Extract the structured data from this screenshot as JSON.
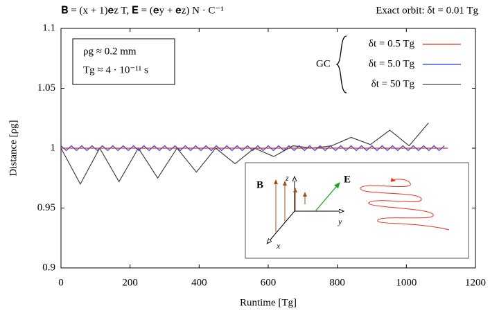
{
  "chart_data": {
    "type": "line",
    "title": "𝐁 = (x + 1)𝐞z T,  𝐄 = (𝐞y + 𝐞z) N · C⁻¹",
    "subtitle": "Exact orbit:  δt = 0.01 Tg",
    "x_label": "Runtime [Tg]",
    "y_label": "Distance [ρg]",
    "annotations": [
      "ρg ≈ 0.2 mm",
      "Tg ≈ 4 · 10⁻¹¹ s"
    ],
    "legend_title": "GC",
    "inset_labels": [
      "B",
      "E",
      "z",
      "y",
      "x"
    ],
    "legend": "upper right",
    "grid": false,
    "xlim": [
      0,
      1200
    ],
    "xticks": [
      0,
      200,
      400,
      600,
      800,
      1000,
      1200
    ],
    "ylim": [
      0.9,
      1.1
    ],
    "yticks": [
      0.9,
      0.95,
      1,
      1.05,
      1.1
    ],
    "series": [
      {
        "name": "δt = 0.5 Tg",
        "color": "#e8311f",
        "x": [
          0,
          1120
        ],
        "values": [
          1,
          1
        ]
      },
      {
        "name": "δt = 5.0 Tg",
        "color": "#1f3de0",
        "x": [
          0,
          15,
          30,
          45,
          60,
          75,
          90,
          105,
          120,
          135,
          150,
          165,
          180,
          195,
          210,
          225,
          240,
          255,
          270,
          285,
          300,
          315,
          330,
          345,
          360,
          375,
          390,
          405,
          420,
          435,
          450,
          465,
          480,
          495,
          510,
          525,
          540,
          555,
          570,
          585,
          600,
          615,
          630,
          645,
          660,
          675,
          690,
          705,
          720,
          735,
          750,
          765,
          780,
          795,
          810,
          825,
          840,
          855,
          870,
          885,
          900,
          915,
          930,
          945,
          960,
          975,
          990,
          1005,
          1020,
          1035,
          1050,
          1065,
          1080,
          1095,
          1110
        ],
        "values": [
          1.002,
          0.998,
          1.002,
          0.998,
          1.002,
          0.998,
          1.002,
          0.998,
          1.002,
          0.998,
          1.002,
          0.998,
          1.002,
          0.998,
          1.002,
          0.998,
          1.002,
          0.998,
          1.002,
          0.998,
          1.002,
          0.998,
          1.002,
          0.998,
          1.002,
          0.998,
          1.002,
          0.998,
          1.002,
          0.998,
          1.002,
          0.998,
          1.002,
          0.998,
          1.002,
          0.998,
          1.002,
          0.998,
          1.002,
          0.998,
          1.002,
          0.998,
          1.002,
          0.998,
          1.002,
          0.998,
          1.002,
          0.998,
          1.002,
          0.998,
          1.002,
          0.998,
          1.002,
          0.998,
          1.002,
          0.998,
          1.002,
          0.998,
          1.002,
          0.998,
          1.002,
          0.998,
          1.002,
          0.998,
          1.002,
          0.998,
          1.002,
          0.998,
          1.002,
          0.998,
          1.002,
          0.998,
          1.002,
          0.998,
          1.002
        ]
      },
      {
        "name": "δt = 50 Tg",
        "color": "#404040",
        "x": [
          0,
          56,
          112,
          168,
          224,
          280,
          336,
          392,
          448,
          504,
          560,
          616,
          672,
          728,
          784,
          840,
          896,
          952,
          1008,
          1064
        ],
        "values": [
          1.0,
          0.97,
          1.0,
          0.972,
          1.0,
          0.975,
          1.0,
          0.98,
          1.0,
          0.987,
          1.0,
          0.993,
          1.002,
          1.0,
          1.002,
          1.009,
          1.003,
          1.015,
          1.002,
          1.021
        ]
      }
    ]
  }
}
